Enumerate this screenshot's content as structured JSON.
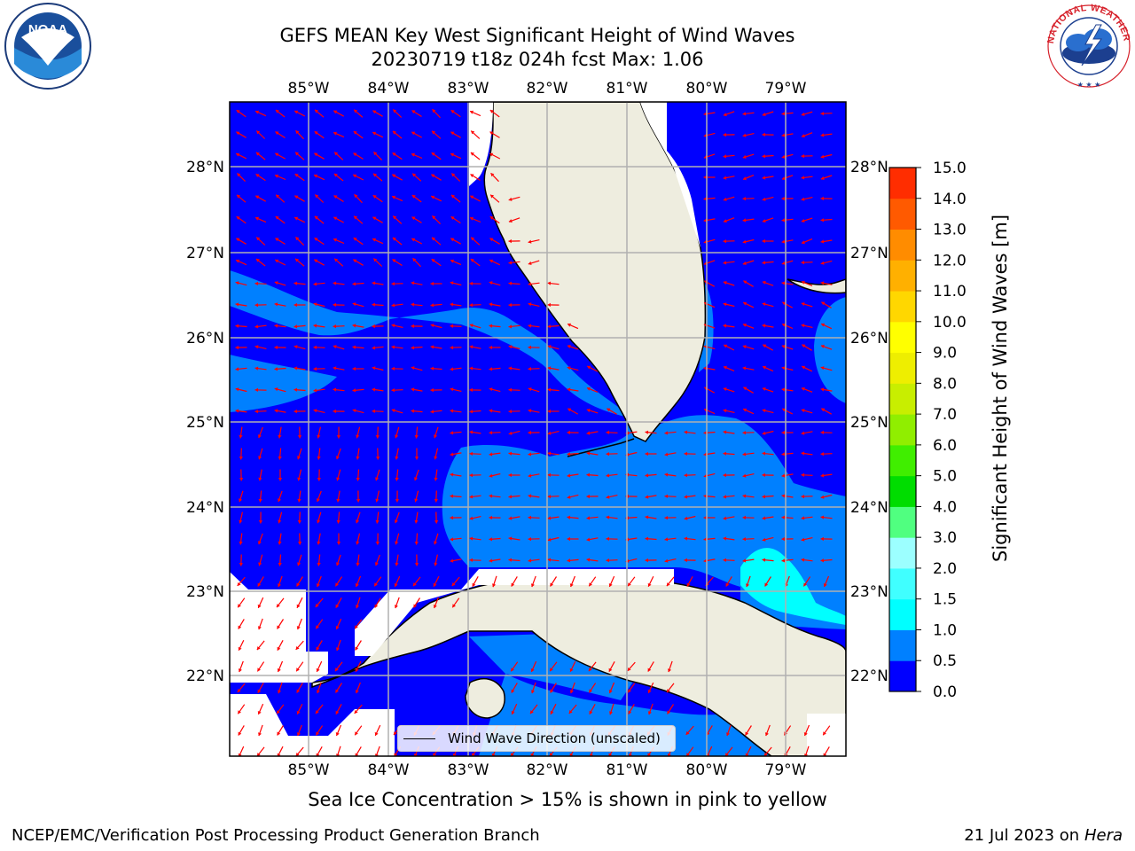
{
  "header": {
    "title_line1": "GEFS MEAN Key West Significant Height of Wind Waves",
    "title_line2": "20230719 t18z 024h fcst   Max: 1.06"
  },
  "logos": {
    "left": {
      "text": "NOAA",
      "ring_text": "NATIONAL OCEANIC AND ATMOSPHERIC ADMINISTRATION · U.S. DEPARTMENT OF COMMERCE"
    },
    "right": {
      "ring_text": "NATIONAL WEATHER SERVICE"
    }
  },
  "map": {
    "lon_labels": [
      "85°W",
      "84°W",
      "83°W",
      "82°W",
      "81°W",
      "80°W",
      "79°W"
    ],
    "lat_labels": [
      "28°N",
      "27°N",
      "26°N",
      "25°N",
      "24°N",
      "23°N",
      "22°N"
    ],
    "colors": {
      "ocean_low": "#0000ff",
      "ocean_mid": "#0080ff",
      "ocean_high": "#00ffff",
      "land": "#eeeddf",
      "arrows": "#ff0000",
      "grid": "#b0b0b0"
    }
  },
  "legend": {
    "label": "Wind Wave Direction (unscaled)"
  },
  "colorbar": {
    "label": "Significant Height of Wind Waves [m]",
    "ticks": [
      "0.0",
      "0.5",
      "1.0",
      "1.5",
      "2.0",
      "3.0",
      "4.0",
      "5.0",
      "6.0",
      "7.0",
      "8.0",
      "9.0",
      "10.0",
      "11.0",
      "12.0",
      "13.0",
      "14.0",
      "15.0"
    ],
    "colors": [
      "#0000ff",
      "#0080ff",
      "#00ffff",
      "#40ffff",
      "#9cffff",
      "#50ff80",
      "#00dd00",
      "#40ee00",
      "#90ee00",
      "#c8ee00",
      "#eeee00",
      "#ffff00",
      "#ffd700",
      "#ffb000",
      "#ff8c00",
      "#ff5a00",
      "#ff2d00"
    ]
  },
  "footer": {
    "note": "Sea Ice Concentration > 15% is shown in pink to yellow",
    "left": "NCEP/EMC/Verification Post Processing Product Generation Branch",
    "right_prefix": "21 Jul 2023 on ",
    "right_host": "Hera"
  }
}
